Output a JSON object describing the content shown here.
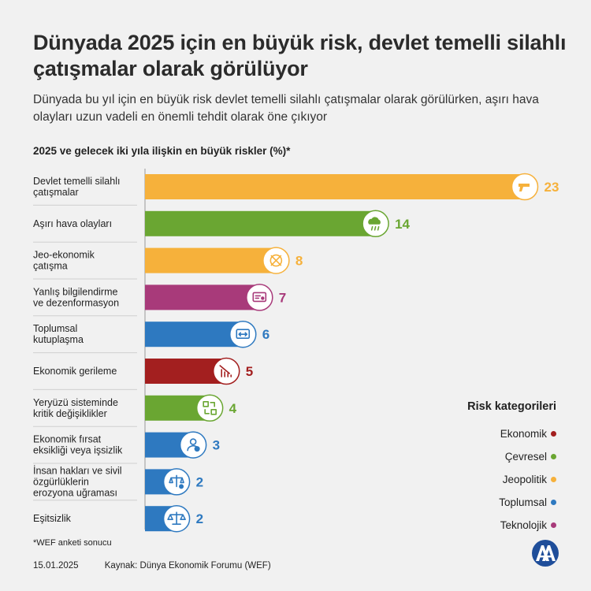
{
  "title": "Dünyada 2025 için en büyük risk, devlet temelli silahlı çatışmalar olarak görülüyor",
  "subtitle": "Dünyada bu yıl için en büyük risk devlet temelli silahlı çatışmalar olarak görülürken, aşırı hava olayları uzun vadeli en önemli tehdit olarak öne çıkıyor",
  "chart_heading": "2025 ve gelecek iki yıla ilişkin en büyük riskler (%)*",
  "colors": {
    "Ekonomik": "#a31f1f",
    "Çevresel": "#6aa632",
    "Jeopolitik": "#f6b13b",
    "Toplumsal": "#2e79c0",
    "Teknolojik": "#a83a7a"
  },
  "chart_data": {
    "type": "bar",
    "orientation": "horizontal",
    "title": "2025 ve gelecek iki yıla ilişkin en büyük riskler (%)*",
    "categories": [
      [
        "Devlet temelli silahlı",
        "çatışmalar"
      ],
      [
        "Aşırı hava olayları"
      ],
      [
        "Jeo-ekonomik",
        "çatışma"
      ],
      [
        "Yanlış bilgilendirme",
        "ve dezenformasyon"
      ],
      [
        "Toplumsal",
        "kutuplaşma"
      ],
      [
        "Ekonomik gerileme"
      ],
      [
        "Yeryüzü sisteminde",
        "kritik değişiklikler"
      ],
      [
        "Ekonomik fırsat",
        "eksikliği veya işsizlik"
      ],
      [
        "İnsan hakları ve sivil",
        "özgürlüklerin",
        "erozyona uğraması"
      ],
      [
        "Eşitsizlik"
      ]
    ],
    "values": [
      23,
      14,
      8,
      7,
      6,
      5,
      4,
      3,
      2,
      2
    ],
    "risk_category": [
      "Jeopolitik",
      "Çevresel",
      "Jeopolitik",
      "Teknolojik",
      "Toplumsal",
      "Ekonomik",
      "Çevresel",
      "Toplumsal",
      "Toplumsal",
      "Toplumsal"
    ],
    "icons": [
      "gun-icon",
      "storm-cloud-icon",
      "trade-conflict-icon",
      "misinformation-icon",
      "polarization-icon",
      "economic-decline-icon",
      "earth-system-icon",
      "unemployment-icon",
      "human-rights-icon",
      "scales-icon"
    ],
    "xlim": [
      0,
      23
    ],
    "grid": false,
    "legend_position": "bottom-right"
  },
  "legend": {
    "title": "Risk kategorileri",
    "items": [
      "Ekonomik",
      "Çevresel",
      "Jeopolitik",
      "Toplumsal",
      "Teknolojik"
    ]
  },
  "footnote": "*WEF anketi sonucu",
  "footer": {
    "date": "15.01.2025",
    "source": "Kaynak: Dünya Ekonomik Forumu (WEF)"
  },
  "logo_text": "AA"
}
